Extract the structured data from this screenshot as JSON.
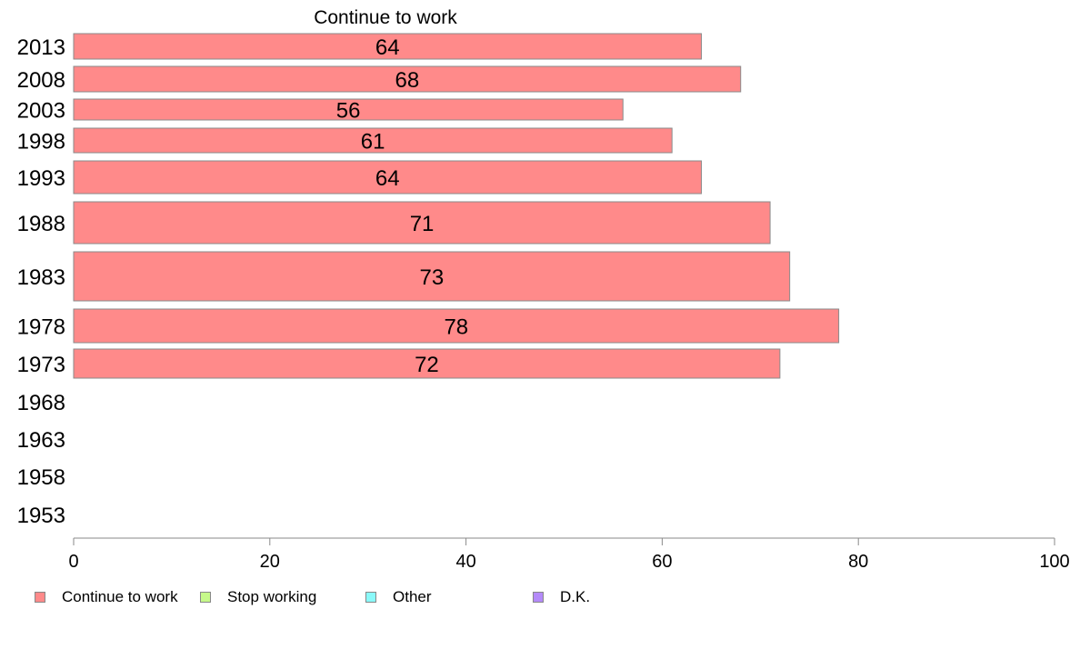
{
  "chart_data": {
    "type": "bar",
    "orientation": "horizontal",
    "title": "Continue to work",
    "categories": [
      "2013",
      "2008",
      "2003",
      "1998",
      "1993",
      "1988",
      "1983",
      "1978",
      "1973",
      "1968",
      "1963",
      "1958",
      "1953"
    ],
    "series": [
      {
        "name": "Continue to work",
        "color": "#ff8a8a",
        "values": [
          64,
          68,
          56,
          61,
          64,
          71,
          73,
          78,
          72,
          null,
          null,
          null,
          null
        ]
      }
    ],
    "xlim": [
      0,
      100
    ],
    "xticks": [
      0,
      20,
      40,
      60,
      80,
      100
    ],
    "xlabel": "",
    "ylabel": "",
    "grid": false,
    "legend_position": "bottom-left",
    "legend": [
      {
        "label": "Continue to work",
        "color": "#ff8a8a"
      },
      {
        "label": "Stop working",
        "color": "#c6f98a"
      },
      {
        "label": "Other",
        "color": "#8af9f9"
      },
      {
        "label": "D.K.",
        "color": "#b48af9"
      }
    ]
  }
}
